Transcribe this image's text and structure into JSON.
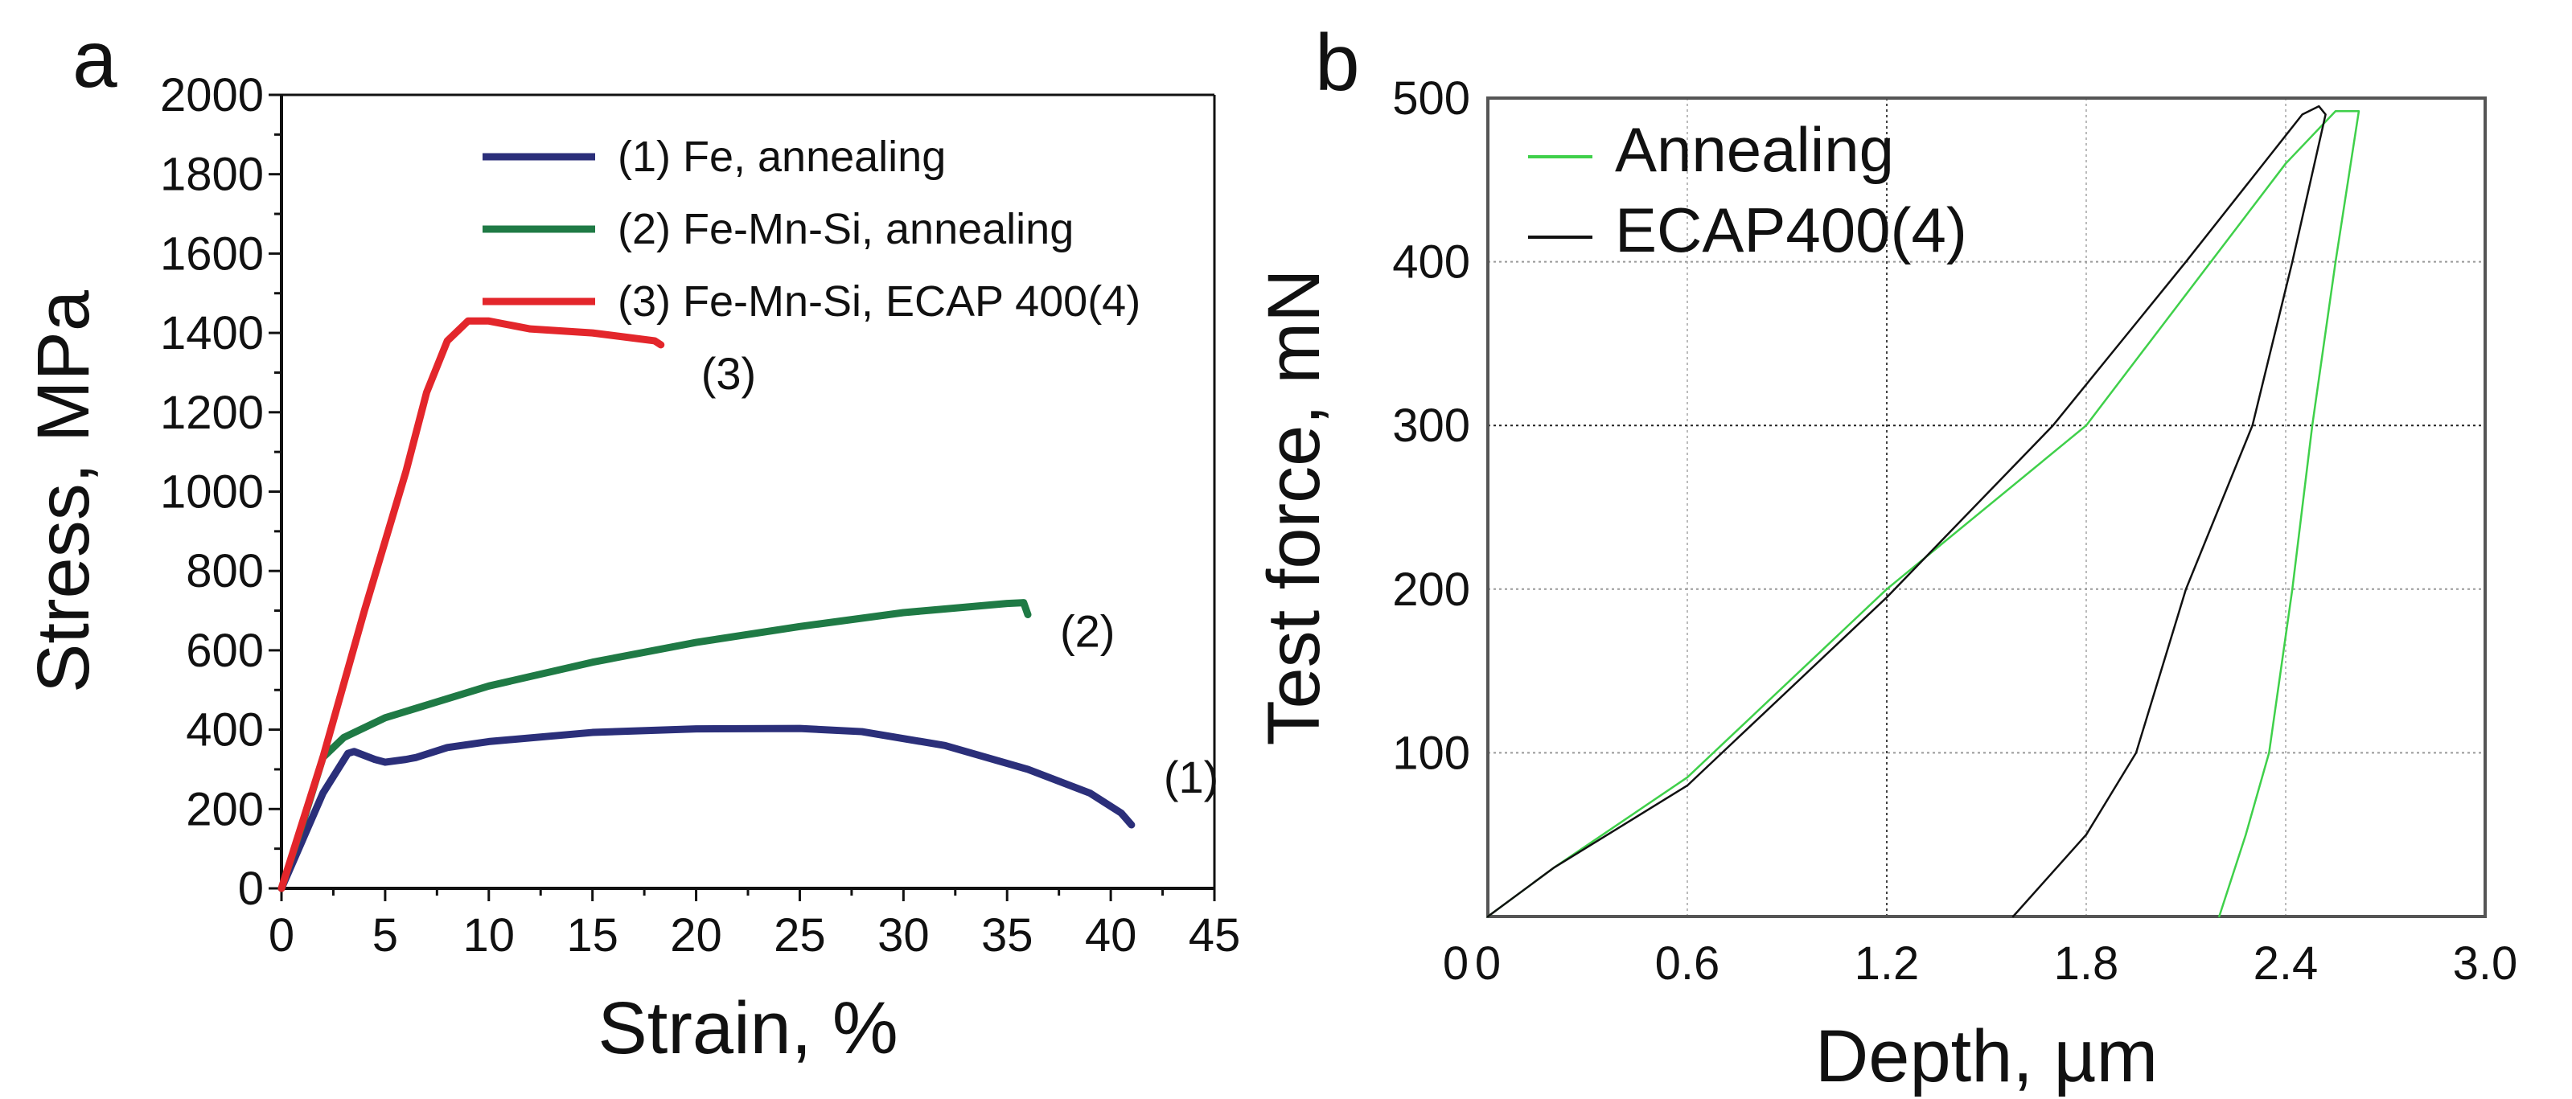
{
  "chart_data": [
    {
      "type": "line",
      "panel_label": "a",
      "xlabel": "Strain, %",
      "ylabel": "Stress, MPa",
      "xlim": [
        0,
        45
      ],
      "ylim": [
        0,
        2000
      ],
      "xticks": [
        "0",
        "5",
        "10",
        "15",
        "20",
        "25",
        "30",
        "35",
        "40",
        "45"
      ],
      "yticks": [
        "0",
        "200",
        "400",
        "600",
        "800",
        "1000",
        "1200",
        "1400",
        "1600",
        "1800",
        "2000"
      ],
      "grid": false,
      "legend_position": "top-right",
      "series": [
        {
          "name": "(1) Fe, annealing",
          "tag": "(1)",
          "color": "#2b2f7a",
          "x": [
            0,
            1,
            2,
            3.2,
            3.5,
            4.5,
            5,
            6,
            6.5,
            8,
            10,
            15,
            20,
            25,
            28,
            32,
            36,
            39,
            40.5,
            41
          ],
          "y": [
            0,
            120,
            240,
            340,
            345,
            325,
            318,
            325,
            330,
            355,
            370,
            393,
            402,
            403,
            395,
            360,
            300,
            240,
            190,
            160
          ]
        },
        {
          "name": "(2) Fe-Mn-Si, annealing",
          "tag": "(2)",
          "color": "#1f7a45",
          "x": [
            0,
            1,
            2,
            3,
            5,
            10,
            15,
            20,
            25,
            30,
            35,
            35.8,
            36
          ],
          "y": [
            0,
            160,
            330,
            380,
            430,
            510,
            570,
            620,
            660,
            695,
            718,
            720,
            690
          ]
        },
        {
          "name": "(3) Fe-Mn-Si, ECAP 400(4)",
          "tag": "(3)",
          "color": "#e3262b",
          "x": [
            0,
            2,
            4,
            6,
            7,
            8,
            9,
            10,
            12,
            15,
            18,
            18.3
          ],
          "y": [
            0,
            330,
            700,
            1050,
            1250,
            1380,
            1430,
            1430,
            1410,
            1400,
            1380,
            1370
          ]
        }
      ]
    },
    {
      "type": "line",
      "panel_label": "b",
      "xlabel": "Depth, µm",
      "ylabel": "Test force, mN",
      "xlim": [
        0,
        3.0
      ],
      "ylim": [
        0,
        500
      ],
      "xticks": [
        "0",
        "0.6",
        "1.2",
        "1.8",
        "2.4",
        "3.0"
      ],
      "yticks": [
        "100",
        "200",
        "300",
        "400",
        "500"
      ],
      "grid": true,
      "legend_position": "top-left",
      "series": [
        {
          "name": "Annealing",
          "color": "#3fd04a",
          "x": [
            0,
            0.2,
            0.6,
            1.2,
            1.8,
            2.4,
            2.55,
            2.62,
            2.62,
            2.55,
            2.48,
            2.42,
            2.35,
            2.28,
            2.2
          ],
          "y": [
            0,
            30,
            85,
            200,
            300,
            460,
            492,
            492,
            492,
            400,
            300,
            200,
            100,
            50,
            0
          ]
        },
        {
          "name": "ECAP400(4)",
          "color": "#111111",
          "x": [
            0,
            0.2,
            0.6,
            1.2,
            1.7,
            2.1,
            2.45,
            2.5,
            2.52,
            2.42,
            2.3,
            2.1,
            1.95,
            1.8,
            1.58
          ],
          "y": [
            0,
            30,
            80,
            195,
            300,
            400,
            490,
            495,
            490,
            400,
            300,
            200,
            100,
            50,
            0
          ]
        }
      ]
    }
  ]
}
